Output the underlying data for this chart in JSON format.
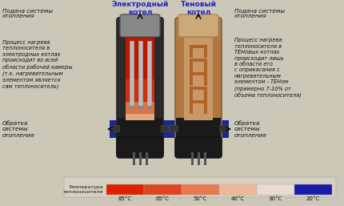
{
  "title_electrode": "Электродный\nкотел",
  "title_ten": "Теновый\nкотел",
  "bg_color": "#ccc8b8",
  "legend_label": "Температура\nтеплоносителя",
  "legend_temps": [
    "85°C",
    "65°C",
    "50°C",
    "40°C",
    "30°C",
    "20°C"
  ],
  "legend_colors": [
    "#dd2200",
    "#e04420",
    "#e87850",
    "#edb898",
    "#e8ddd0",
    "#1a1aaa"
  ],
  "text_left_top": "Подача системы\nотопления",
  "text_left_mid": "Процесс нагрева\nтеплоносителя в\nэлектродных котлах\nпроисходит во всей\nобласти рабочей камеры\n(т.к. нагревательным\nэлементом является\nсам теплоноситель)",
  "text_left_bot": "Обратка\nсистемы\nотопления",
  "text_right_top": "Подача системы\nотопления",
  "text_right_mid": "Процесс нагрева\nтеплоносителя в\nТЕНовых котлах\nпроисходит лишь\nв области его\nс оприкасания с\nнагревательным\nэлементом - ТЕНом\n(примерно 7-10% от\nобъема теплоносителя)",
  "text_right_bot": "Обратка\nсистемы\nотопления",
  "title_color": "#2222cc",
  "text_color": "#111111"
}
